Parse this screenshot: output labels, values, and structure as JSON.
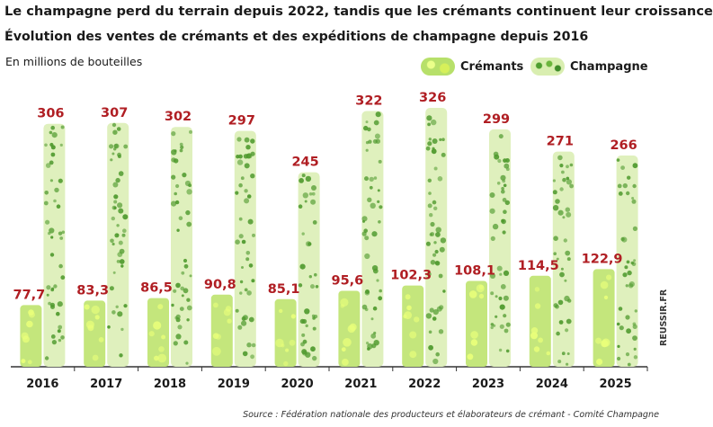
{
  "title": "Le champagne perd du terrain depuis 2022, tandis que les crémants continuent leur croissance",
  "subtitle": "Évolution des ventes de crémants et des expéditions de champagne depuis 2016",
  "unit_label": "En millions de bouteilles",
  "source": "Source : Fédération nationale des producteurs et élaborateurs de crémant - Comité Champagne",
  "brand": "REUSSIR.FR",
  "colors": {
    "value_label": "#b01e23",
    "cremants_fill": "#c4e67c",
    "cremants_bubble": "#e9ff7a",
    "champagne_fill": "#dff0bd",
    "champagne_bubble": "#4f9a2e",
    "axis": "#333333"
  },
  "chart_data": {
    "type": "bar",
    "categories": [
      "2016",
      "2017",
      "2018",
      "2019",
      "2020",
      "2021",
      "2022",
      "2023",
      "2024",
      "2025"
    ],
    "series": [
      {
        "name": "Crémants",
        "values": [
          77.7,
          83.3,
          86.5,
          90.8,
          85.1,
          95.6,
          102.3,
          108.1,
          114.5,
          122.9
        ],
        "labels": [
          "77,7",
          "83,3",
          "86,5",
          "90,8",
          "85,1",
          "95,6",
          "102,3",
          "108,1",
          "114,5",
          "122,9"
        ]
      },
      {
        "name": "Champagne",
        "values": [
          306,
          307,
          302,
          297,
          245,
          322,
          326,
          299,
          271,
          266
        ],
        "labels": [
          "306",
          "307",
          "302",
          "297",
          "245",
          "322",
          "326",
          "299",
          "271",
          "266"
        ]
      }
    ],
    "ylim": [
      0,
      326
    ],
    "grid": false,
    "legend_position": "top-right"
  }
}
